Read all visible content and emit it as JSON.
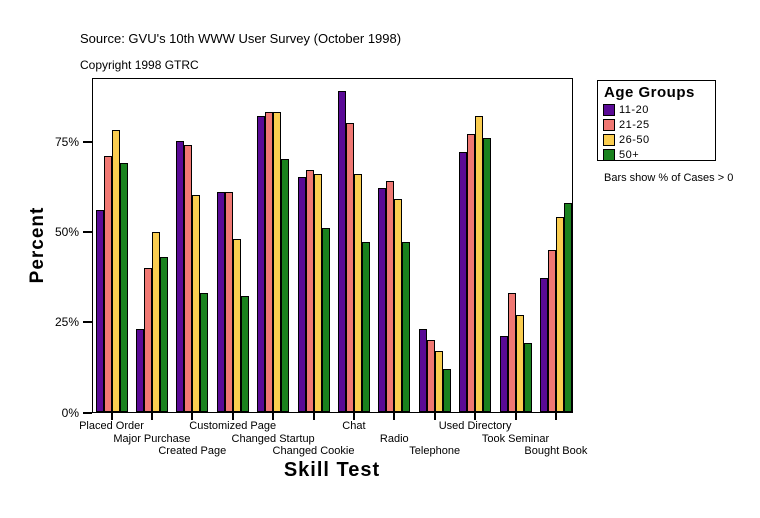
{
  "title": "Source: GVU's 10th WWW User Survey (October 1998)",
  "subtitle": "Copyright 1998 GTRC",
  "note": "Bars show % of Cases > 0",
  "legend": {
    "title": "Age Groups"
  },
  "chart_data": {
    "type": "bar",
    "title": "Source: GVU's 10th WWW User Survey (October 1998)",
    "subtitle": "Copyright 1998 GTRC",
    "xlabel": "Skill Test",
    "ylabel": "Percent",
    "ytick_labels": [
      "0%",
      "25%",
      "50%",
      "75%"
    ],
    "ytick_values": [
      0,
      25,
      50,
      75
    ],
    "ylim": [
      0,
      92.5
    ],
    "grid": false,
    "legend_position": "right",
    "legend_title": "Age Groups",
    "annotation": "Bars show % of Cases > 0",
    "categories": [
      "Placed Order",
      "Major Purchase",
      "Created Page",
      "Customized Page",
      "Changed Startup",
      "Changed Cookie",
      "Chat",
      "Radio",
      "Telephone",
      "Used Directory",
      "Took Seminar",
      "Bought Book"
    ],
    "series": [
      {
        "name": "11-20",
        "color": "#5A0A96",
        "values": [
          56,
          23,
          75,
          61,
          82,
          65,
          89,
          62,
          23,
          72,
          21,
          37
        ]
      },
      {
        "name": "21-25",
        "color": "#F07873",
        "values": [
          71,
          40,
          74,
          61,
          83,
          67,
          80,
          64,
          20,
          77,
          33,
          45
        ]
      },
      {
        "name": "26-50",
        "color": "#FACD50",
        "values": [
          78,
          50,
          60,
          48,
          83,
          66,
          66,
          59,
          17,
          82,
          27,
          54
        ]
      },
      {
        "name": "50+",
        "color": "#1A821E",
        "values": [
          69,
          43,
          33,
          32,
          70,
          51,
          47,
          47,
          12,
          76,
          19,
          58
        ]
      }
    ]
  }
}
